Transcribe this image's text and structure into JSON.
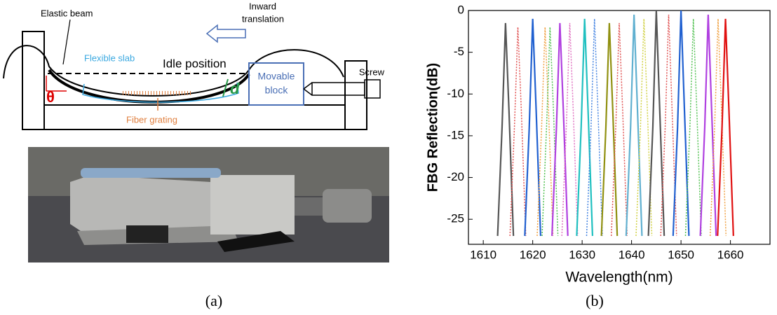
{
  "diagram": {
    "labels": {
      "elastic_beam": "Elastic beam",
      "inward_translation": [
        "Inward",
        "translation"
      ],
      "flexible_slab": "Flexible slab",
      "idle_position": "Idle position",
      "movable_block": [
        "Movable",
        "block"
      ],
      "screw": "Screw",
      "theta": "θ",
      "d": "d",
      "fiber_grating": "Fiber grating"
    },
    "caption": "(a)"
  },
  "chart_data": {
    "type": "line",
    "caption": "(b)",
    "x_label": "Wavelength(nm)",
    "y_label": "FBG Reflection(dB)",
    "xlim": [
      1607,
      1668
    ],
    "ylim": [
      -28,
      0
    ],
    "xticks": [
      1610,
      1620,
      1630,
      1640,
      1650,
      1660
    ],
    "yticks": [
      0,
      -5,
      -10,
      -15,
      -20,
      -25
    ],
    "series": [
      {
        "color": "#555555",
        "dashed": false,
        "x": [
          1612.9,
          1613.8,
          1614.5,
          1615.2,
          1616.1
        ],
        "values": [
          -27,
          -14,
          -1.5,
          -12,
          -27
        ]
      },
      {
        "color": "#e05050",
        "dashed": true,
        "x": [
          1615.4,
          1616.3,
          1617,
          1617.7,
          1618.6
        ],
        "values": [
          -27,
          -14,
          -2,
          -12,
          -27
        ]
      },
      {
        "color": "#2060d0",
        "dashed": false,
        "x": [
          1618.4,
          1619.3,
          1620,
          1620.7,
          1621.6
        ],
        "values": [
          -27,
          -14,
          -1,
          -12,
          -27
        ]
      },
      {
        "color": "#f0a040",
        "dashed": true,
        "x": [
          1620.9,
          1621.8,
          1622.5,
          1623.2,
          1624.1
        ],
        "values": [
          -27,
          -14,
          -2,
          -12,
          -27
        ]
      },
      {
        "color": "#50c050",
        "dashed": true,
        "x": [
          1621.9,
          1622.8,
          1623.5,
          1624.2,
          1625.1
        ],
        "values": [
          -27,
          -14,
          -2,
          -12,
          -27
        ]
      },
      {
        "color": "#b040e0",
        "dashed": false,
        "x": [
          1623.9,
          1624.8,
          1625.5,
          1626.2,
          1627.1
        ],
        "values": [
          -27,
          -14,
          -1.5,
          -12,
          -27
        ]
      },
      {
        "color": "#e070c0",
        "dashed": true,
        "x": [
          1625.9,
          1626.8,
          1627.5,
          1628.2,
          1629.1
        ],
        "values": [
          -27,
          -14,
          -1.5,
          -12,
          -27
        ]
      },
      {
        "color": "#20c0c0",
        "dashed": false,
        "x": [
          1628.9,
          1629.8,
          1630.5,
          1631.2,
          1632.1
        ],
        "values": [
          -27,
          -14,
          -1,
          -12,
          -27
        ]
      },
      {
        "color": "#4080e0",
        "dashed": true,
        "x": [
          1630.9,
          1631.8,
          1632.5,
          1633.2,
          1634.1
        ],
        "values": [
          -27,
          -14,
          -1,
          -12,
          -27
        ]
      },
      {
        "color": "#909010",
        "dashed": false,
        "x": [
          1633.9,
          1634.8,
          1635.5,
          1636.2,
          1637.1
        ],
        "values": [
          -27,
          -14,
          -1.5,
          -12,
          -27
        ]
      },
      {
        "color": "#e05050",
        "dashed": true,
        "x": [
          1635.9,
          1636.8,
          1637.5,
          1638.2,
          1639.1
        ],
        "values": [
          -27,
          -14,
          -1.5,
          -12,
          -27
        ]
      },
      {
        "color": "#60b0d0",
        "dashed": false,
        "x": [
          1638.9,
          1639.8,
          1640.5,
          1641.2,
          1642.1
        ],
        "values": [
          -27,
          -14,
          -0.5,
          -12,
          -27
        ]
      },
      {
        "color": "#d0d040",
        "dashed": true,
        "x": [
          1640.9,
          1641.8,
          1642.5,
          1643.2,
          1644.1
        ],
        "values": [
          -27,
          -14,
          -1,
          -12,
          -27
        ]
      },
      {
        "color": "#555555",
        "dashed": false,
        "x": [
          1643.4,
          1644.3,
          1645,
          1645.7,
          1646.6
        ],
        "values": [
          -27,
          -14,
          0,
          -12,
          -27
        ]
      },
      {
        "color": "#e05050",
        "dashed": true,
        "x": [
          1645.9,
          1646.8,
          1647.5,
          1648.2,
          1649.1
        ],
        "values": [
          -27,
          -14,
          -0.5,
          -12,
          -27
        ]
      },
      {
        "color": "#2060d0",
        "dashed": false,
        "x": [
          1648.4,
          1649.3,
          1650,
          1650.7,
          1651.6
        ],
        "values": [
          -27,
          -14,
          0,
          -12,
          -27
        ]
      },
      {
        "color": "#50c050",
        "dashed": true,
        "x": [
          1650.9,
          1651.8,
          1652.5,
          1653.2,
          1654.1
        ],
        "values": [
          -27,
          -14,
          -1,
          -12,
          -27
        ]
      },
      {
        "color": "#b040e0",
        "dashed": false,
        "x": [
          1653.9,
          1654.8,
          1655.5,
          1656.2,
          1657.1
        ],
        "values": [
          -27,
          -14,
          -0.5,
          -12,
          -27
        ]
      },
      {
        "color": "#f0a040",
        "dashed": true,
        "x": [
          1655.9,
          1656.8,
          1657.5,
          1658.2,
          1659.1
        ],
        "values": [
          -27,
          -14,
          -1,
          -12,
          -27
        ]
      },
      {
        "color": "#e01010",
        "dashed": false,
        "x": [
          1657.4,
          1658.3,
          1659,
          1659.7,
          1660.6
        ],
        "values": [
          -27,
          -14,
          -1,
          -12,
          -27
        ]
      }
    ]
  }
}
